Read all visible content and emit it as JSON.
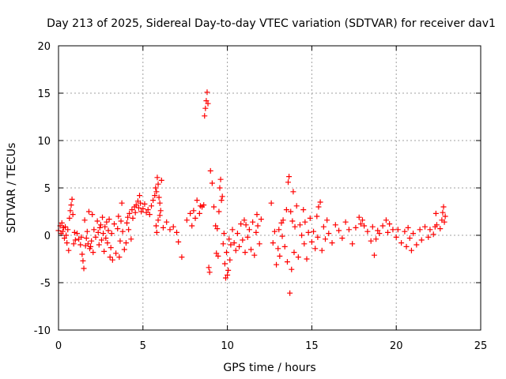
{
  "chart_data": {
    "type": "scatter",
    "title": "Day 213 of 2025, Sidereal Day-to-day VTEC variation (SDTVAR) for receiver dav1",
    "xlabel": "GPS time / hours",
    "ylabel": "SDTVAR / TECUs",
    "xlim": [
      0,
      25
    ],
    "ylim": [
      -10,
      20
    ],
    "xticks": [
      0,
      5,
      10,
      15,
      20,
      25
    ],
    "yticks": [
      -10,
      -5,
      0,
      5,
      10,
      15,
      20
    ],
    "xtick_labels": [
      "0",
      "5",
      "10",
      "15",
      "20",
      "25"
    ],
    "ytick_labels": [
      "-10",
      "-5",
      "0",
      "5",
      "10",
      "15",
      "20"
    ],
    "grid": true,
    "marker": "+",
    "color": "#ff0000",
    "points": [
      [
        0.0,
        0.5
      ],
      [
        0.1,
        1.0
      ],
      [
        0.15,
        0.2
      ],
      [
        0.2,
        1.3
      ],
      [
        0.25,
        0.4
      ],
      [
        0.3,
        0.8
      ],
      [
        0.35,
        -0.3
      ],
      [
        0.4,
        0.9
      ],
      [
        0.45,
        0.0
      ],
      [
        0.5,
        -0.8
      ],
      [
        0.55,
        0.6
      ],
      [
        0.6,
        -1.6
      ],
      [
        0.65,
        1.8
      ],
      [
        0.7,
        2.6
      ],
      [
        0.75,
        3.2
      ],
      [
        0.8,
        3.8
      ],
      [
        0.85,
        2.2
      ],
      [
        0.9,
        -0.9
      ],
      [
        0.95,
        0.3
      ],
      [
        1.0,
        -0.5
      ],
      [
        1.1,
        0.2
      ],
      [
        1.2,
        -0.4
      ],
      [
        1.3,
        -1.0
      ],
      [
        1.35,
        -0.2
      ],
      [
        1.4,
        -2.0
      ],
      [
        1.45,
        -2.7
      ],
      [
        1.5,
        -3.5
      ],
      [
        1.55,
        1.6
      ],
      [
        1.6,
        -1.1
      ],
      [
        1.65,
        -0.3
      ],
      [
        1.7,
        0.4
      ],
      [
        1.75,
        -0.9
      ],
      [
        1.8,
        2.5
      ],
      [
        1.85,
        -1.4
      ],
      [
        1.9,
        -1.2
      ],
      [
        1.95,
        -0.6
      ],
      [
        2.0,
        2.2
      ],
      [
        2.05,
        -1.8
      ],
      [
        2.1,
        0.6
      ],
      [
        2.2,
        -0.2
      ],
      [
        2.3,
        1.5
      ],
      [
        2.35,
        0.3
      ],
      [
        2.4,
        -1.0
      ],
      [
        2.45,
        0.8
      ],
      [
        2.5,
        1.1
      ],
      [
        2.55,
        -0.5
      ],
      [
        2.6,
        1.9
      ],
      [
        2.65,
        0.2
      ],
      [
        2.7,
        -1.7
      ],
      [
        2.75,
        0.9
      ],
      [
        2.8,
        -0.3
      ],
      [
        2.85,
        1.4
      ],
      [
        2.9,
        -0.8
      ],
      [
        2.95,
        0.5
      ],
      [
        3.0,
        1.7
      ],
      [
        3.05,
        -2.3
      ],
      [
        3.1,
        -1.3
      ],
      [
        3.15,
        0.2
      ],
      [
        3.2,
        -2.6
      ],
      [
        3.3,
        1.2
      ],
      [
        3.4,
        -1.9
      ],
      [
        3.5,
        0.7
      ],
      [
        3.55,
        2.0
      ],
      [
        3.6,
        -2.3
      ],
      [
        3.65,
        -0.6
      ],
      [
        3.7,
        1.5
      ],
      [
        3.75,
        3.4
      ],
      [
        3.8,
        0.4
      ],
      [
        3.9,
        -1.5
      ],
      [
        4.0,
        -0.8
      ],
      [
        4.05,
        1.3
      ],
      [
        4.1,
        1.9
      ],
      [
        4.15,
        0.6
      ],
      [
        4.2,
        2.3
      ],
      [
        4.3,
        -0.4
      ],
      [
        4.35,
        2.7
      ],
      [
        4.4,
        1.8
      ],
      [
        4.5,
        3.0
      ],
      [
        4.55,
        2.4
      ],
      [
        4.6,
        3.2
      ],
      [
        4.7,
        3.6
      ],
      [
        4.75,
        2.9
      ],
      [
        4.8,
        4.2
      ],
      [
        4.85,
        3.4
      ],
      [
        4.9,
        2.5
      ],
      [
        5.0,
        2.8
      ],
      [
        5.1,
        3.3
      ],
      [
        5.2,
        2.4
      ],
      [
        5.3,
        2.7
      ],
      [
        5.4,
        2.2
      ],
      [
        5.5,
        3.1
      ],
      [
        5.6,
        3.7
      ],
      [
        5.7,
        4.2
      ],
      [
        5.75,
        5.0
      ],
      [
        5.8,
        4.6
      ],
      [
        5.85,
        6.1
      ],
      [
        5.9,
        5.4
      ],
      [
        5.95,
        4.0
      ],
      [
        6.0,
        3.4
      ],
      [
        6.05,
        2.6
      ],
      [
        6.1,
        5.8
      ],
      [
        5.78,
        1.0
      ],
      [
        5.82,
        0.3
      ],
      [
        5.9,
        1.6
      ],
      [
        6.0,
        2.1
      ],
      [
        6.2,
        0.8
      ],
      [
        6.4,
        1.4
      ],
      [
        6.6,
        0.6
      ],
      [
        6.8,
        0.9
      ],
      [
        7.0,
        0.3
      ],
      [
        7.1,
        -0.7
      ],
      [
        7.3,
        -2.3
      ],
      [
        7.6,
        1.6
      ],
      [
        7.8,
        2.3
      ],
      [
        7.9,
        1.0
      ],
      [
        8.0,
        2.6
      ],
      [
        8.1,
        1.8
      ],
      [
        8.2,
        3.7
      ],
      [
        8.35,
        2.3
      ],
      [
        8.4,
        3.1
      ],
      [
        8.5,
        3.0
      ],
      [
        8.6,
        3.2
      ],
      [
        8.65,
        12.6
      ],
      [
        8.7,
        13.4
      ],
      [
        8.75,
        14.2
      ],
      [
        8.8,
        15.1
      ],
      [
        8.85,
        13.9
      ],
      [
        8.9,
        -3.4
      ],
      [
        8.95,
        -3.9
      ],
      [
        9.0,
        6.8
      ],
      [
        9.1,
        5.5
      ],
      [
        9.2,
        3.0
      ],
      [
        9.3,
        1.0
      ],
      [
        9.35,
        -1.9
      ],
      [
        9.4,
        0.7
      ],
      [
        9.45,
        -2.2
      ],
      [
        9.5,
        2.5
      ],
      [
        9.55,
        5.0
      ],
      [
        9.6,
        5.9
      ],
      [
        9.65,
        3.7
      ],
      [
        9.7,
        4.1
      ],
      [
        9.75,
        -0.9
      ],
      [
        9.8,
        0.2
      ],
      [
        9.85,
        -3.0
      ],
      [
        9.9,
        -4.5
      ],
      [
        9.95,
        -1.8
      ],
      [
        10.0,
        -4.2
      ],
      [
        10.05,
        -3.7
      ],
      [
        10.1,
        -0.4
      ],
      [
        10.15,
        -2.6
      ],
      [
        10.2,
        -1.0
      ],
      [
        10.3,
        0.6
      ],
      [
        10.4,
        -0.8
      ],
      [
        10.5,
        -1.6
      ],
      [
        10.6,
        0.2
      ],
      [
        10.7,
        -1.2
      ],
      [
        10.8,
        1.2
      ],
      [
        10.9,
        -0.5
      ],
      [
        11.0,
        1.6
      ],
      [
        11.05,
        -1.8
      ],
      [
        11.1,
        1.1
      ],
      [
        11.2,
        -0.2
      ],
      [
        11.3,
        0.6
      ],
      [
        11.4,
        -1.5
      ],
      [
        11.5,
        1.4
      ],
      [
        11.6,
        -2.1
      ],
      [
        11.7,
        0.3
      ],
      [
        11.75,
        2.2
      ],
      [
        11.8,
        1.0
      ],
      [
        11.9,
        -0.9
      ],
      [
        12.0,
        1.7
      ],
      [
        12.6,
        3.4
      ],
      [
        12.7,
        -0.8
      ],
      [
        12.8,
        0.4
      ],
      [
        12.9,
        -3.1
      ],
      [
        13.0,
        -1.4
      ],
      [
        13.05,
        0.6
      ],
      [
        13.1,
        -2.2
      ],
      [
        13.2,
        1.3
      ],
      [
        13.25,
        -0.1
      ],
      [
        13.3,
        1.6
      ],
      [
        13.4,
        -1.2
      ],
      [
        13.5,
        2.7
      ],
      [
        13.55,
        -2.8
      ],
      [
        13.6,
        5.6
      ],
      [
        13.65,
        6.2
      ],
      [
        13.7,
        -6.1
      ],
      [
        13.75,
        2.5
      ],
      [
        13.8,
        -3.6
      ],
      [
        13.85,
        1.5
      ],
      [
        13.9,
        4.6
      ],
      [
        13.95,
        -1.8
      ],
      [
        14.0,
        0.9
      ],
      [
        14.1,
        3.1
      ],
      [
        14.2,
        -2.3
      ],
      [
        14.3,
        1.1
      ],
      [
        14.4,
        0.0
      ],
      [
        14.5,
        2.7
      ],
      [
        14.55,
        -0.9
      ],
      [
        14.6,
        1.4
      ],
      [
        14.7,
        -2.5
      ],
      [
        14.8,
        0.3
      ],
      [
        14.9,
        1.8
      ],
      [
        15.0,
        -0.7
      ],
      [
        15.1,
        0.4
      ],
      [
        15.2,
        -1.4
      ],
      [
        15.3,
        2.0
      ],
      [
        15.35,
        -0.2
      ],
      [
        15.4,
        3.0
      ],
      [
        15.5,
        3.5
      ],
      [
        15.6,
        -1.6
      ],
      [
        15.7,
        0.9
      ],
      [
        15.8,
        -0.4
      ],
      [
        15.9,
        1.6
      ],
      [
        16.0,
        0.2
      ],
      [
        16.2,
        -0.8
      ],
      [
        16.4,
        1.1
      ],
      [
        16.6,
        0.5
      ],
      [
        16.8,
        -0.3
      ],
      [
        17.0,
        1.4
      ],
      [
        17.2,
        0.6
      ],
      [
        17.4,
        -0.9
      ],
      [
        17.6,
        0.8
      ],
      [
        17.8,
        1.9
      ],
      [
        17.9,
        1.2
      ],
      [
        18.0,
        1.6
      ],
      [
        18.1,
        1.0
      ],
      [
        18.3,
        0.4
      ],
      [
        18.5,
        -0.6
      ],
      [
        18.6,
        0.9
      ],
      [
        18.7,
        -2.1
      ],
      [
        18.8,
        -0.4
      ],
      [
        18.9,
        0.5
      ],
      [
        19.0,
        0.2
      ],
      [
        19.2,
        1.0
      ],
      [
        19.4,
        1.6
      ],
      [
        19.5,
        0.3
      ],
      [
        19.6,
        1.2
      ],
      [
        19.8,
        0.6
      ],
      [
        20.0,
        -0.2
      ],
      [
        20.1,
        0.6
      ],
      [
        20.3,
        -0.8
      ],
      [
        20.5,
        0.4
      ],
      [
        20.6,
        -1.2
      ],
      [
        20.7,
        0.8
      ],
      [
        20.8,
        -0.3
      ],
      [
        20.9,
        -1.6
      ],
      [
        21.0,
        0.2
      ],
      [
        21.2,
        -1.0
      ],
      [
        21.4,
        0.6
      ],
      [
        21.5,
        -0.5
      ],
      [
        21.7,
        0.9
      ],
      [
        21.9,
        -0.2
      ],
      [
        22.0,
        0.6
      ],
      [
        22.2,
        0.1
      ],
      [
        22.3,
        0.9
      ],
      [
        22.35,
        2.3
      ],
      [
        22.4,
        1.1
      ],
      [
        22.6,
        0.7
      ],
      [
        22.7,
        1.6
      ],
      [
        22.75,
        2.4
      ],
      [
        22.8,
        3.0
      ],
      [
        22.85,
        1.4
      ],
      [
        22.9,
        2.0
      ]
    ]
  }
}
